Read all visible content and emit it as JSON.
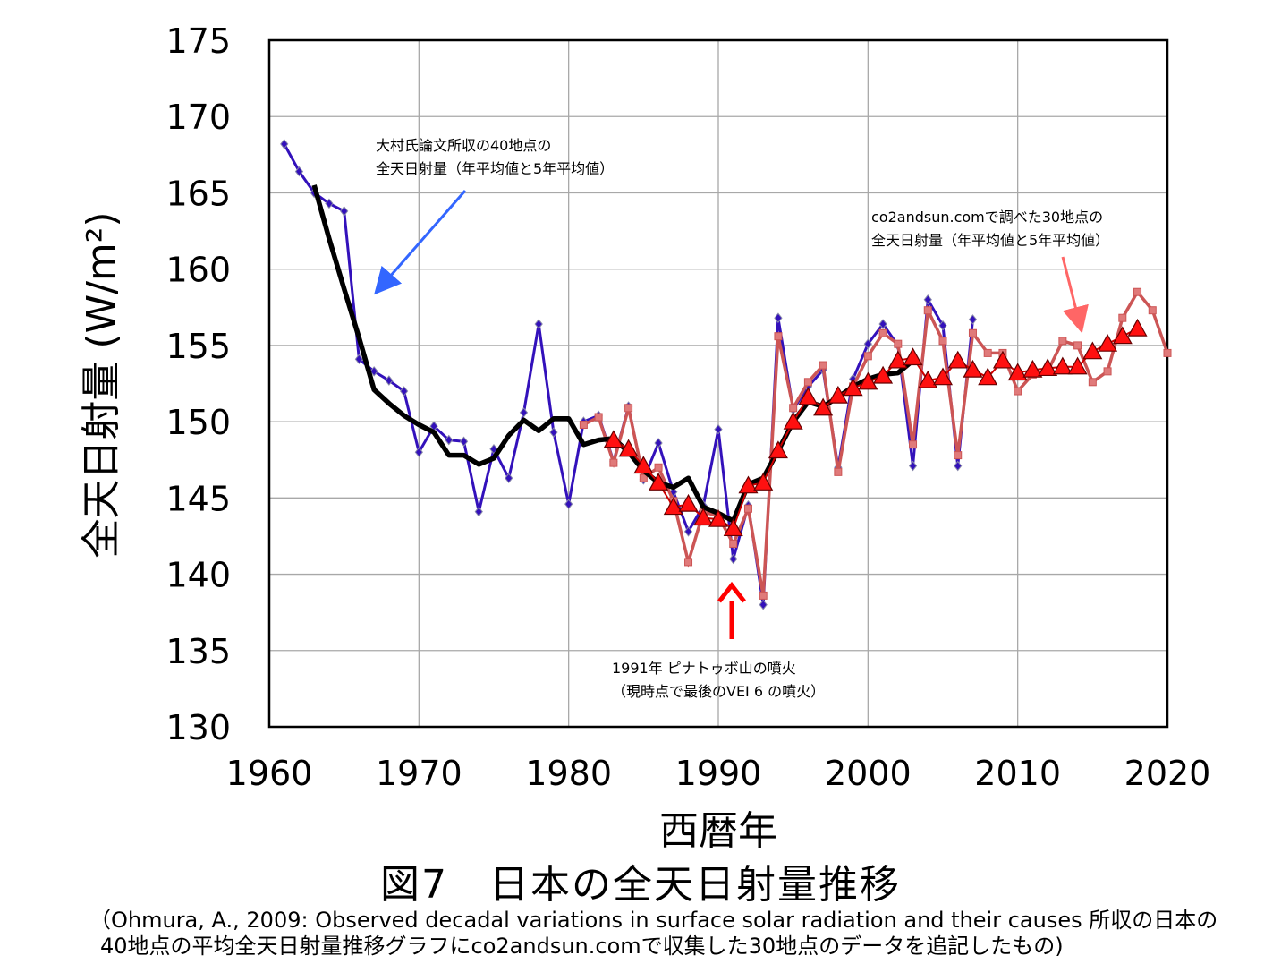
{
  "chart_data": {
    "type": "line",
    "xlabel": "西暦年",
    "ylabel": "全天日射量 (W/m²)",
    "xlim": [
      1960,
      2020
    ],
    "ylim": [
      130,
      175
    ],
    "xticks": [
      1960,
      1970,
      1980,
      1990,
      2000,
      2010,
      2020
    ],
    "yticks": [
      130,
      135,
      140,
      145,
      150,
      155,
      160,
      165,
      170,
      175
    ],
    "grid": true,
    "series": [
      {
        "name": "大村氏論文所収の40地点の全天日射量（年平均値）",
        "color": "#3311bb",
        "marker": "diamond",
        "x": [
          1961,
          1962,
          1963,
          1964,
          1965,
          1966,
          1967,
          1968,
          1969,
          1970,
          1971,
          1972,
          1973,
          1974,
          1975,
          1976,
          1977,
          1978,
          1979,
          1980,
          1981,
          1982,
          1983,
          1984,
          1985,
          1986,
          1987,
          1988,
          1989,
          1990,
          1991,
          1992,
          1993,
          1994,
          1995,
          1996,
          1997,
          1998,
          1999,
          2000,
          2001,
          2002,
          2003,
          2004,
          2005,
          2006,
          2007
        ],
        "y": [
          168.2,
          166.4,
          165.0,
          164.3,
          163.8,
          154.1,
          153.3,
          152.7,
          152.0,
          148.0,
          149.7,
          148.8,
          148.7,
          144.1,
          148.2,
          146.3,
          150.6,
          156.4,
          149.3,
          144.6,
          150.0,
          150.4,
          147.4,
          151.0,
          146.2,
          148.6,
          145.4,
          142.8,
          144.5,
          149.5,
          141.0,
          144.5,
          138.0,
          156.8,
          150.8,
          152.3,
          153.4,
          147.0,
          152.8,
          155.1,
          156.4,
          155.0,
          147.1,
          158.0,
          156.3,
          147.1,
          156.7
        ]
      },
      {
        "name": "大村氏論文所収の40地点の全天日射量（5年平均値）",
        "color": "#000000",
        "x": [
          1963,
          1964,
          1965,
          1966,
          1967,
          1968,
          1969,
          1970,
          1971,
          1972,
          1973,
          1974,
          1975,
          1976,
          1977,
          1978,
          1979,
          1980,
          1981,
          1982,
          1983,
          1984,
          1985,
          1986,
          1987,
          1988,
          1989,
          1990,
          1991,
          1992,
          1993,
          1994,
          1995,
          1996,
          1997,
          1998,
          1999,
          2000,
          2001,
          2002,
          2003
        ],
        "y": [
          165.5,
          162.0,
          158.7,
          155.5,
          152.1,
          151.2,
          150.4,
          149.8,
          149.3,
          147.8,
          147.8,
          147.2,
          147.6,
          149.1,
          150.1,
          149.4,
          150.2,
          150.2,
          148.5,
          148.8,
          148.9,
          148.0,
          146.8,
          146.0,
          145.7,
          146.3,
          144.4,
          144.0,
          143.5,
          145.9,
          146.3,
          148.1,
          150.0,
          151.3,
          151.0,
          151.6,
          152.3,
          152.8,
          153.1,
          153.2,
          154.0
        ]
      },
      {
        "name": "co2andsun.comで調べた30地点の全天日射量（年平均値）",
        "color": "#cc5555",
        "marker": "square",
        "x": [
          1981,
          1982,
          1983,
          1984,
          1985,
          1986,
          1987,
          1988,
          1989,
          1990,
          1991,
          1992,
          1993,
          1994,
          1995,
          1996,
          1997,
          1998,
          1999,
          2000,
          2001,
          2002,
          2003,
          2004,
          2005,
          2006,
          2007,
          2008,
          2009,
          2010,
          2011,
          2012,
          2013,
          2014,
          2015,
          2016,
          2017,
          2018,
          2019,
          2020
        ],
        "y": [
          149.8,
          150.3,
          147.3,
          150.9,
          146.3,
          147.0,
          144.8,
          140.8,
          144.1,
          143.8,
          142.0,
          144.3,
          138.6,
          155.6,
          150.9,
          152.6,
          153.7,
          146.7,
          152.3,
          154.3,
          155.8,
          155.1,
          148.5,
          157.3,
          155.3,
          147.8,
          155.8,
          154.5,
          154.5,
          152.0,
          153.1,
          153.3,
          155.3,
          155.0,
          152.6,
          153.3,
          156.8,
          158.5,
          157.3,
          154.5
        ]
      },
      {
        "name": "co2andsun.comで調べた30地点の全天日射量（5年平均値）",
        "color": "#ff1010",
        "marker": "triangle",
        "x": [
          1983,
          1984,
          1985,
          1986,
          1987,
          1988,
          1989,
          1990,
          1991,
          1992,
          1993,
          1994,
          1995,
          1996,
          1997,
          1998,
          1999,
          2000,
          2001,
          2002,
          2003,
          2004,
          2005,
          2006,
          2007,
          2008,
          2009,
          2010,
          2011,
          2012,
          2013,
          2014,
          2015,
          2016,
          2017,
          2018
        ],
        "y": [
          148.8,
          148.2,
          147.1,
          146.0,
          144.4,
          144.6,
          143.7,
          143.6,
          143.0,
          145.8,
          146.0,
          148.1,
          150.0,
          151.6,
          150.9,
          151.7,
          152.2,
          152.6,
          153.0,
          154.0,
          154.2,
          152.7,
          152.9,
          154.0,
          153.4,
          152.9,
          154.0,
          153.2,
          153.4,
          153.5,
          153.6,
          153.6,
          154.6,
          155.1,
          155.6,
          156.1
        ]
      }
    ],
    "annotations": [
      {
        "lines": [
          "大村氏論文所収の40地点の",
          "全天日射量（年平均値と5年平均値）"
        ],
        "arrow_color": "#3366ff"
      },
      {
        "lines": [
          "co2andsun.comで調べた30地点の",
          "全天日射量（年平均値と5年平均値）"
        ],
        "arrow_color": "#ff6666"
      },
      {
        "lines": [
          "1991年 ピナトゥボ山の噴火",
          "（現時点で最後のVEI 6 の噴火）"
        ],
        "arrow_color": "#ff0000"
      }
    ]
  },
  "figure_title": "図7　日本の全天日射量推移",
  "caption_line1": "（Ohmura, A., 2009: Observed decadal variations in surface solar radiation and their causes 所収の日本の",
  "caption_line2": "40地点の平均全天日射量推移グラフにco2andsun.comで収集した30地点のデータを追記したもの)"
}
